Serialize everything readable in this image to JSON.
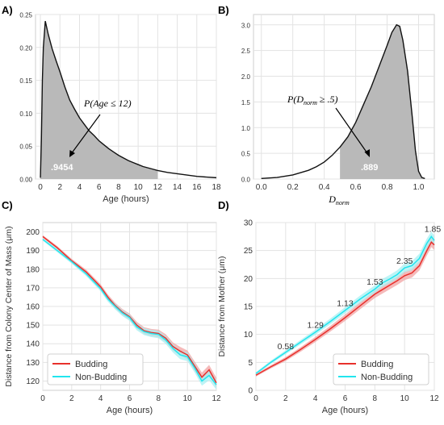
{
  "chart_data": [
    {
      "panel": "A)",
      "type": "area",
      "xlabel": "Age (hours)",
      "ylabel": "",
      "xlim": [
        -0.5,
        18
      ],
      "ylim": [
        0,
        0.25
      ],
      "xticks": [
        "0",
        "2",
        "4",
        "6",
        "8",
        "10",
        "12",
        "14",
        "16",
        "18"
      ],
      "yticks": [
        "0.00",
        "0.05",
        "0.10",
        "0.15",
        "0.20",
        "0.25"
      ],
      "grid": true,
      "curve": {
        "x": [
          0,
          0.1,
          0.2,
          0.3,
          0.5,
          0.8,
          1.2,
          1.6,
          2,
          2.5,
          3,
          3.5,
          4,
          4.5,
          5,
          5.5,
          6,
          6.5,
          7,
          7.5,
          8,
          8.5,
          9,
          9.5,
          10,
          10.5,
          11,
          11.5,
          12,
          13,
          14,
          15,
          16,
          17,
          18
        ],
        "y": [
          0.002,
          0.06,
          0.15,
          0.2,
          0.24,
          0.22,
          0.198,
          0.18,
          0.163,
          0.14,
          0.12,
          0.106,
          0.093,
          0.083,
          0.073,
          0.066,
          0.058,
          0.052,
          0.046,
          0.041,
          0.036,
          0.032,
          0.028,
          0.025,
          0.022,
          0.019,
          0.017,
          0.015,
          0.013,
          0.01,
          0.008,
          0.006,
          0.004,
          0.003,
          0.002
        ]
      },
      "shade_to_x": 12,
      "annotation": {
        "text": "P(Age ≤ 12)",
        "result": ".9454"
      }
    },
    {
      "panel": "B)",
      "type": "area",
      "xlabel": "D_norm",
      "ylabel": "",
      "xlim": [
        -0.05,
        1.1
      ],
      "ylim": [
        0,
        3.2
      ],
      "xticks": [
        "0.0",
        "0.2",
        "0.4",
        "0.6",
        "0.8",
        "1.0"
      ],
      "yticks": [
        "0.0",
        "0.5",
        "1.0",
        "1.5",
        "2.0",
        "2.5",
        "3.0"
      ],
      "grid": true,
      "curve": {
        "x": [
          0,
          0.1,
          0.2,
          0.3,
          0.35,
          0.4,
          0.45,
          0.5,
          0.55,
          0.6,
          0.65,
          0.7,
          0.75,
          0.8,
          0.83,
          0.86,
          0.88,
          0.9,
          0.93,
          0.96,
          0.98,
          1.0,
          1.02,
          1.04
        ],
        "y": [
          0.01,
          0.03,
          0.08,
          0.17,
          0.24,
          0.33,
          0.46,
          0.62,
          0.82,
          1.1,
          1.45,
          1.8,
          2.2,
          2.6,
          2.85,
          3.0,
          2.97,
          2.7,
          2.1,
          1.2,
          0.55,
          0.15,
          0.03,
          0.01
        ]
      },
      "shade_from_x": 0.5,
      "annotation": {
        "prefix": "P(",
        "var": "D",
        "sub": "norm",
        "suffix": " ≥ .5)",
        "result": ".889"
      }
    },
    {
      "panel": "C)",
      "type": "line",
      "xlabel": "Age (hours)",
      "ylabel": "Distance from Colony Center of Mass (μm)",
      "xlim": [
        0,
        12
      ],
      "ylim": [
        115,
        205
      ],
      "xticks": [
        "0",
        "2",
        "4",
        "6",
        "8",
        "10",
        "12"
      ],
      "yticks": [
        "120",
        "130",
        "140",
        "150",
        "160",
        "170",
        "180",
        "190",
        "200"
      ],
      "grid": true,
      "legend": "bottom-left",
      "series": [
        {
          "name": "Budding",
          "color": "#e8302c",
          "band": "#f2a3a3",
          "x": [
            0,
            1,
            2,
            3,
            4,
            4.5,
            5,
            5.5,
            6,
            6.5,
            7,
            7.5,
            8,
            8.5,
            9,
            9.5,
            10,
            10.5,
            11,
            11.5,
            12
          ],
          "y": [
            197.5,
            191.5,
            184.5,
            178.5,
            170.5,
            165,
            160.5,
            157,
            154.5,
            150,
            147,
            146,
            145.5,
            143,
            138.5,
            136,
            134,
            128,
            122,
            126,
            119
          ]
        },
        {
          "name": "Non-Budding",
          "color": "#22e5ee",
          "band": "#a8f0f3",
          "x": [
            0,
            1,
            2,
            3,
            4,
            4.5,
            5,
            5.5,
            6,
            6.5,
            7,
            7.5,
            8,
            8.5,
            9,
            9.5,
            10,
            10.5,
            11,
            11.5,
            12
          ],
          "y": [
            196,
            190,
            184,
            177.5,
            169.5,
            164,
            160,
            156.5,
            154,
            149,
            146.5,
            145.5,
            145,
            142,
            137.5,
            134,
            133,
            127,
            120,
            123,
            118
          ]
        }
      ]
    },
    {
      "panel": "D)",
      "type": "line",
      "xlabel": "Age (hours)",
      "ylabel": "Distance from Mother (μm)",
      "xlim": [
        0,
        12
      ],
      "ylim": [
        0,
        30
      ],
      "xticks": [
        "0",
        "2",
        "4",
        "6",
        "8",
        "10",
        "12"
      ],
      "yticks": [
        "0",
        "5",
        "10",
        "15",
        "20",
        "25",
        "30"
      ],
      "grid": true,
      "legend": "bottom-right",
      "series": [
        {
          "name": "Budding",
          "color": "#e8302c",
          "band": "#f2a3a3",
          "x": [
            0,
            1,
            2,
            3,
            4,
            5,
            6,
            7,
            8,
            8.5,
            9,
            9.5,
            10,
            10.5,
            11,
            11.5,
            11.8,
            12
          ],
          "y": [
            2.7,
            4.2,
            5.6,
            7.3,
            9.1,
            11,
            13,
            15.1,
            17.2,
            18,
            18.8,
            19.6,
            20.5,
            21,
            22.3,
            25,
            26.5,
            26
          ]
        },
        {
          "name": "Non-Budding",
          "color": "#22e5ee",
          "band": "#a8f0f3",
          "x": [
            0,
            1,
            2,
            3,
            4,
            5,
            6,
            7,
            8,
            8.5,
            9,
            9.5,
            10,
            10.5,
            11,
            11.5,
            11.8,
            12
          ],
          "y": [
            3.0,
            5.0,
            6.8,
            8.6,
            10.4,
            12.3,
            14.3,
            16.3,
            18.1,
            19.2,
            19.9,
            20.7,
            21.9,
            22.3,
            23.6,
            26.3,
            27.5,
            26.8
          ]
        }
      ],
      "annotations": [
        {
          "text": "0.58",
          "x": 2,
          "y": 6.8
        },
        {
          "text": "1.29",
          "x": 4,
          "y": 10.6
        },
        {
          "text": "1.13",
          "x": 6,
          "y": 14.5
        },
        {
          "text": "1.53",
          "x": 8,
          "y": 18.3
        },
        {
          "text": "2.35",
          "x": 10,
          "y": 22.1
        },
        {
          "text": "1.85",
          "x": 12,
          "y": 27.8
        }
      ]
    }
  ]
}
